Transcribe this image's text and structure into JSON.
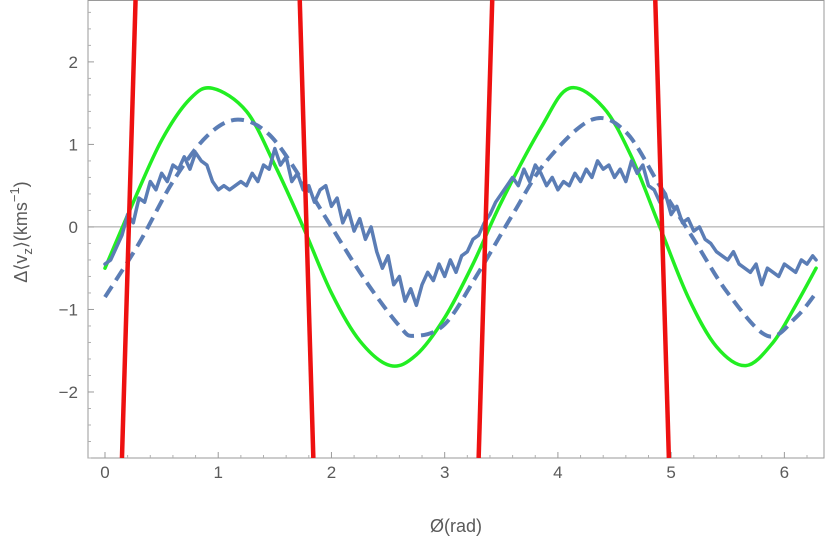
{
  "chart_data": {
    "type": "line",
    "title": "",
    "xlabel": "Ø(rad)",
    "ylabel_parts": {
      "a": "Δ⟨v",
      "sub": "z",
      "b": "⟩(kms",
      "sup": "−1",
      "c": ")"
    },
    "xlim": [
      -0.15,
      6.35
    ],
    "ylim": [
      -2.8,
      2.75
    ],
    "xticks": [
      0,
      1,
      2,
      3,
      4,
      5,
      6
    ],
    "xtick_labels": [
      "0",
      "1",
      "2",
      "3",
      "4",
      "5",
      "6"
    ],
    "yticks": [
      -2,
      -1,
      0,
      1,
      2
    ],
    "ytick_labels": [
      "−2",
      "−1",
      "0",
      "1",
      "2"
    ],
    "grid": false,
    "zero_line": true,
    "series": [
      {
        "style": "solid-green",
        "color": "#22ee22",
        "x": [
          0,
          0.25,
          0.5,
          0.75,
          0.95,
          1.25,
          1.5,
          1.75,
          2.0,
          2.25,
          2.52,
          2.75,
          3.0,
          3.25,
          3.5,
          3.85,
          4.1,
          4.4,
          4.65,
          4.9,
          5.15,
          5.4,
          5.66,
          5.9,
          6.1,
          6.28
        ],
        "y": [
          -0.5,
          0.3,
          1.05,
          1.55,
          1.68,
          1.4,
          0.75,
          0.0,
          -0.8,
          -1.38,
          -1.68,
          -1.55,
          -1.1,
          -0.45,
          0.3,
          1.2,
          1.68,
          1.45,
          0.85,
          0.0,
          -0.85,
          -1.45,
          -1.68,
          -1.4,
          -0.95,
          -0.5
        ]
      },
      {
        "style": "dashed-blue",
        "color": "#5b7db5",
        "x": [
          0,
          0.3,
          0.6,
          0.9,
          1.17,
          1.45,
          1.75,
          2.0,
          2.3,
          2.6,
          2.73,
          3.0,
          3.3,
          3.6,
          3.9,
          4.3,
          4.6,
          4.9,
          5.2,
          5.5,
          5.85,
          6.1,
          6.28
        ],
        "y": [
          -0.85,
          -0.2,
          0.55,
          1.1,
          1.3,
          1.12,
          0.55,
          0.0,
          -0.65,
          -1.2,
          -1.32,
          -1.18,
          -0.55,
          0.15,
          0.8,
          1.3,
          1.15,
          0.5,
          -0.15,
          -0.8,
          -1.32,
          -1.1,
          -0.8
        ]
      },
      {
        "style": "solid-blue",
        "color": "#5b7db5",
        "x": [
          0,
          0.05,
          0.1,
          0.15,
          0.2,
          0.25,
          0.3,
          0.35,
          0.4,
          0.45,
          0.5,
          0.55,
          0.6,
          0.65,
          0.7,
          0.75,
          0.8,
          0.85,
          0.9,
          0.95,
          1.0,
          1.05,
          1.1,
          1.15,
          1.2,
          1.25,
          1.3,
          1.35,
          1.4,
          1.45,
          1.5,
          1.55,
          1.6,
          1.65,
          1.7,
          1.75,
          1.8,
          1.85,
          1.9,
          1.95,
          2.0,
          2.05,
          2.1,
          2.15,
          2.2,
          2.25,
          2.3,
          2.35,
          2.4,
          2.45,
          2.5,
          2.55,
          2.6,
          2.65,
          2.7,
          2.75,
          2.8,
          2.85,
          2.9,
          2.95,
          3.0,
          3.05,
          3.1,
          3.15,
          3.2,
          3.25,
          3.3,
          3.35,
          3.4,
          3.45,
          3.5,
          3.55,
          3.6,
          3.65,
          3.7,
          3.75,
          3.8,
          3.85,
          3.9,
          3.95,
          4.0,
          4.05,
          4.1,
          4.15,
          4.2,
          4.25,
          4.3,
          4.35,
          4.4,
          4.45,
          4.5,
          4.55,
          4.6,
          4.65,
          4.7,
          4.75,
          4.8,
          4.85,
          4.9,
          4.95,
          5.0,
          5.05,
          5.1,
          5.15,
          5.2,
          5.25,
          5.3,
          5.35,
          5.4,
          5.45,
          5.5,
          5.55,
          5.6,
          5.65,
          5.7,
          5.75,
          5.8,
          5.85,
          5.9,
          5.95,
          6.0,
          6.05,
          6.1,
          6.15,
          6.2,
          6.25,
          6.28
        ],
        "y": [
          -0.45,
          -0.4,
          -0.25,
          -0.1,
          0.15,
          0.05,
          0.35,
          0.3,
          0.55,
          0.45,
          0.65,
          0.55,
          0.75,
          0.7,
          0.85,
          0.7,
          0.9,
          0.8,
          0.75,
          0.55,
          0.45,
          0.5,
          0.45,
          0.5,
          0.55,
          0.5,
          0.65,
          0.55,
          0.75,
          0.7,
          0.95,
          0.75,
          0.85,
          0.55,
          0.65,
          0.45,
          0.5,
          0.3,
          0.45,
          0.5,
          0.25,
          0.35,
          0.05,
          0.2,
          -0.05,
          0.1,
          -0.15,
          0.0,
          -0.3,
          -0.5,
          -0.35,
          -0.7,
          -0.6,
          -0.9,
          -0.75,
          -0.95,
          -0.7,
          -0.55,
          -0.65,
          -0.45,
          -0.6,
          -0.4,
          -0.55,
          -0.35,
          -0.3,
          -0.15,
          -0.1,
          0.05,
          0.15,
          0.3,
          0.4,
          0.5,
          0.6,
          0.5,
          0.7,
          0.55,
          0.75,
          0.65,
          0.5,
          0.6,
          0.45,
          0.55,
          0.5,
          0.65,
          0.55,
          0.7,
          0.6,
          0.8,
          0.7,
          0.75,
          0.6,
          0.7,
          0.55,
          0.8,
          0.65,
          0.75,
          0.5,
          0.45,
          0.3,
          0.4,
          0.15,
          0.25,
          0.05,
          0.1,
          -0.05,
          0.0,
          -0.15,
          -0.2,
          -0.3,
          -0.35,
          -0.4,
          -0.3,
          -0.45,
          -0.5,
          -0.55,
          -0.45,
          -0.7,
          -0.5,
          -0.55,
          -0.6,
          -0.45,
          -0.5,
          -0.55,
          -0.4,
          -0.45,
          -0.35,
          -0.4
        ]
      },
      {
        "style": "solid-red",
        "color": "#ee1111",
        "segments": [
          {
            "x": [
              0.15,
              0.27
            ],
            "y": [
              -2.8,
              2.75
            ]
          },
          {
            "x": [
              1.72,
              1.84
            ],
            "y": [
              2.75,
              -2.8
            ]
          },
          {
            "x": [
              3.3,
              3.42
            ],
            "y": [
              -2.8,
              2.75
            ]
          },
          {
            "x": [
              4.86,
              4.98
            ],
            "y": [
              2.75,
              -2.8
            ]
          }
        ]
      }
    ]
  }
}
